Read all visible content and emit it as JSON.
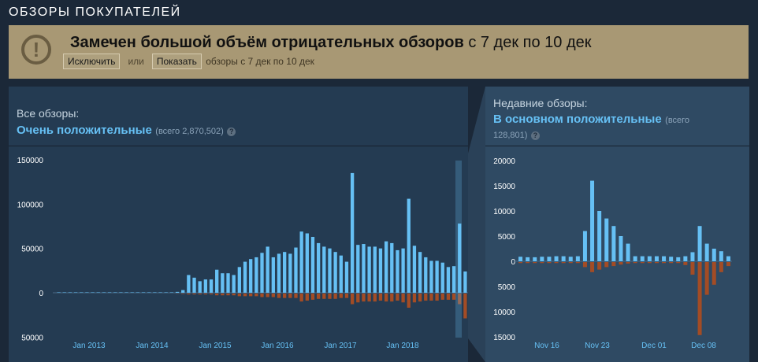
{
  "section_title": "ОБЗОРЫ ПОКУПАТЕЛЕЙ",
  "alert": {
    "icon": "exclamation-icon",
    "title_bold": "Замечен большой объём отрицательных обзоров",
    "title_rest": " с 7 дек по 10 дек",
    "exclude_label": "Исключить",
    "or_label": "или",
    "show_label": "Показать",
    "tail_text": "обзоры с 7 дек по 10 дек"
  },
  "all_reviews": {
    "label": "Все обзоры:",
    "summary": "Очень положительные",
    "count": "(всего 2,870,502)",
    "help": "?"
  },
  "recent_reviews": {
    "label": "Недавние обзоры:",
    "summary": "В основном положительные",
    "count_line1": "(всего",
    "count_line2": "128,801)",
    "help": "?"
  },
  "chart_data": [
    {
      "type": "bar",
      "y_ticks_up": [
        "150000",
        "100000",
        "50000",
        "0"
      ],
      "y_ticks_down": [
        "50000"
      ],
      "x_tick_labels": [
        "Jan 2013",
        "Jan 2014",
        "Jan 2015",
        "Jan 2016",
        "Jan 2017",
        "Jan 2018"
      ],
      "ylim": [
        -50000,
        150000
      ],
      "series": [
        {
          "values": [
            500,
            500,
            500,
            500,
            500,
            500,
            500,
            500,
            500,
            500,
            500,
            500,
            500,
            500,
            500,
            500,
            500,
            500,
            500,
            500,
            500,
            1000,
            3000,
            20000,
            17000,
            13000,
            15000,
            15000,
            26000,
            22000,
            22000,
            20000,
            29000,
            35000,
            38000,
            40000,
            45000,
            52000,
            40000,
            44000,
            46000,
            44000,
            51000,
            69000,
            67000,
            63000,
            56000,
            52000,
            50000,
            46000,
            42000,
            35000,
            135000,
            54000,
            55000,
            52000,
            52000,
            50000,
            58000,
            56000,
            48000,
            50000,
            106000,
            53000,
            46000,
            40000,
            36000,
            36000,
            34000,
            29000,
            30000,
            78000,
            24000
          ]
        },
        {
          "values": [
            0,
            0,
            0,
            0,
            0,
            0,
            0,
            0,
            0,
            0,
            0,
            0,
            0,
            0,
            0,
            0,
            0,
            0,
            0,
            0,
            0,
            -200,
            -500,
            -1000,
            -1000,
            -1000,
            -1000,
            -1000,
            -2000,
            -2000,
            -2000,
            -2000,
            -3000,
            -3000,
            -3000,
            -3000,
            -4000,
            -4000,
            -4000,
            -5000,
            -5000,
            -5000,
            -5000,
            -9000,
            -8000,
            -7000,
            -6000,
            -6000,
            -6000,
            -6000,
            -5000,
            -5000,
            -12000,
            -10000,
            -9000,
            -9000,
            -9000,
            -8000,
            -9000,
            -9000,
            -8000,
            -10000,
            -16000,
            -10000,
            -9000,
            -8000,
            -8000,
            -8000,
            -7000,
            -7000,
            -7000,
            -12000,
            -28000
          ]
        }
      ]
    },
    {
      "type": "bar",
      "y_ticks_up": [
        "20000",
        "15000",
        "10000",
        "5000",
        "0"
      ],
      "y_ticks_down": [
        "5000",
        "10000",
        "15000"
      ],
      "x_tick_labels": [
        "Nov 16",
        "Nov 23",
        "Dec 01",
        "Dec 08"
      ],
      "ylim": [
        -15000,
        20000
      ],
      "series": [
        {
          "values": [
            900,
            800,
            800,
            900,
            900,
            1000,
            1000,
            900,
            1000,
            6000,
            16000,
            10000,
            8500,
            7000,
            5000,
            3500,
            1000,
            1000,
            1000,
            1000,
            1000,
            900,
            800,
            1000,
            1800,
            7000,
            3500,
            2500,
            2000,
            1000
          ]
        },
        {
          "values": [
            -200,
            -200,
            -200,
            -200,
            -200,
            -200,
            -200,
            -200,
            -200,
            -1000,
            -2000,
            -1500,
            -1000,
            -800,
            -500,
            -300,
            -200,
            -200,
            -200,
            -200,
            -200,
            -200,
            -200,
            -600,
            -2500,
            -14500,
            -6500,
            -4500,
            -2000,
            -800
          ]
        }
      ]
    }
  ],
  "colors": {
    "positive": "#66c0f4",
    "negative": "#a34c25",
    "alert_bg": "#a89874"
  }
}
